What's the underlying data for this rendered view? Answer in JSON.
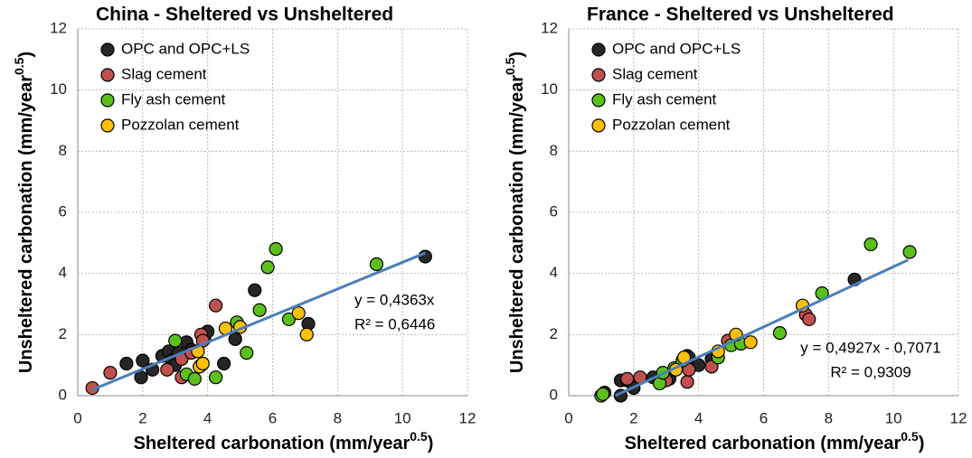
{
  "chart_data": [
    {
      "type": "scatter",
      "title": "China - Sheltered vs Unsheltered",
      "xlabel": {
        "text": "Sheltered carbonation (mm/year",
        "sup": "0.5",
        "end": ")"
      },
      "ylabel": {
        "text": "Unsheltered carbonation (mm/year",
        "sup": "0.5",
        "end": ")"
      },
      "xlim": [
        0,
        12
      ],
      "ylim": [
        0,
        12
      ],
      "xticks": [
        0,
        2,
        4,
        6,
        8,
        10,
        12
      ],
      "yticks": [
        0,
        2,
        4,
        6,
        8,
        10,
        12
      ],
      "grid": true,
      "legend": "upper left",
      "series": [
        {
          "name": "OPC and OPC+LS",
          "color": "#262626",
          "x": [
            1.5,
            2.0,
            1.95,
            2.3,
            2.6,
            2.8,
            2.9,
            3.1,
            3.35,
            3.5,
            3.9,
            4.0,
            4.5,
            4.85,
            5.45,
            7.1,
            10.7,
            3.0
          ],
          "values": [
            1.05,
            1.15,
            0.6,
            0.85,
            1.3,
            1.45,
            1.15,
            1.4,
            1.75,
            1.5,
            1.85,
            2.1,
            1.05,
            1.85,
            3.45,
            2.35,
            4.55,
            1.0
          ]
        },
        {
          "name": "Slag cement",
          "color": "#c0504d",
          "x": [
            0.45,
            1.0,
            2.75,
            3.2,
            3.2,
            3.8,
            3.85,
            4.25,
            3.5
          ],
          "values": [
            0.25,
            0.75,
            0.85,
            1.2,
            0.6,
            2.0,
            1.8,
            2.95,
            1.4
          ]
        },
        {
          "name": "Fly ash cement",
          "color": "#5cc01c",
          "x": [
            3.0,
            3.35,
            3.6,
            4.25,
            4.9,
            5.2,
            5.6,
            5.85,
            6.1,
            6.5,
            9.2,
            3.8
          ],
          "values": [
            1.8,
            0.7,
            0.55,
            0.6,
            2.4,
            1.4,
            2.8,
            4.2,
            4.8,
            2.5,
            4.3,
            1.0
          ]
        },
        {
          "name": "Pozzolan cement",
          "color": "#ffc000",
          "x": [
            3.7,
            3.75,
            3.85,
            4.55,
            5.0,
            6.8,
            7.05
          ],
          "values": [
            1.45,
            0.95,
            1.05,
            2.2,
            2.25,
            2.7,
            2.0
          ]
        }
      ],
      "trendline": {
        "color": "#4a7ebb",
        "slope": 0.4363,
        "intercept": 0,
        "x": [
          0.45,
          10.7
        ]
      },
      "annotations": [
        "y = 0,4363x",
        "R² = 0,6446"
      ]
    },
    {
      "type": "scatter",
      "title": "France - Sheltered vs Unsheltered",
      "xlabel": {
        "text": "Sheltered carbonation (mm/year",
        "sup": "0.5",
        "end": ")"
      },
      "ylabel": {
        "text": "Unsheltered carbonation (mm/year",
        "sup": "0.5",
        "end": ")"
      },
      "xlim": [
        0,
        12
      ],
      "ylim": [
        0,
        12
      ],
      "xticks": [
        0,
        2,
        4,
        6,
        8,
        10,
        12
      ],
      "yticks": [
        0,
        2,
        4,
        6,
        8,
        10,
        12
      ],
      "grid": true,
      "legend": "upper left",
      "series": [
        {
          "name": "OPC and OPC+LS",
          "color": "#262626",
          "x": [
            1.1,
            1.6,
            1.6,
            1.8,
            2.0,
            2.6,
            3.1,
            3.3,
            3.65,
            3.7,
            4.0,
            4.4,
            8.8
          ],
          "values": [
            0.1,
            0.0,
            0.5,
            0.5,
            0.25,
            0.6,
            0.55,
            0.9,
            1.3,
            1.25,
            1.0,
            1.2,
            3.8
          ]
        },
        {
          "name": "Slag cement",
          "color": "#c0504d",
          "x": [
            1.8,
            2.2,
            3.0,
            3.65,
            3.7,
            4.4,
            4.9,
            7.3,
            7.4
          ],
          "values": [
            0.55,
            0.6,
            0.5,
            0.45,
            0.85,
            0.95,
            1.8,
            2.65,
            2.5
          ]
        },
        {
          "name": "Fly ash cement",
          "color": "#5cc01c",
          "x": [
            1.0,
            1.05,
            2.8,
            2.9,
            3.25,
            3.5,
            4.6,
            5.0,
            5.3,
            6.5,
            7.8,
            9.3,
            10.5
          ],
          "values": [
            0.0,
            0.05,
            0.4,
            0.75,
            0.9,
            1.15,
            1.25,
            1.65,
            1.7,
            2.05,
            3.35,
            4.95,
            4.7
          ]
        },
        {
          "name": "Pozzolan cement",
          "color": "#ffc000",
          "x": [
            3.3,
            3.55,
            4.6,
            5.15,
            5.6,
            7.2
          ],
          "values": [
            0.85,
            1.25,
            1.45,
            2.0,
            1.75,
            2.95
          ]
        }
      ],
      "trendline": {
        "color": "#4a7ebb",
        "slope": 0.4927,
        "intercept": -0.7071,
        "x": [
          1.44,
          10.45
        ]
      },
      "annotations": [
        "y = 0,4927x - 0,7071",
        "R² = 0,9309"
      ]
    }
  ]
}
